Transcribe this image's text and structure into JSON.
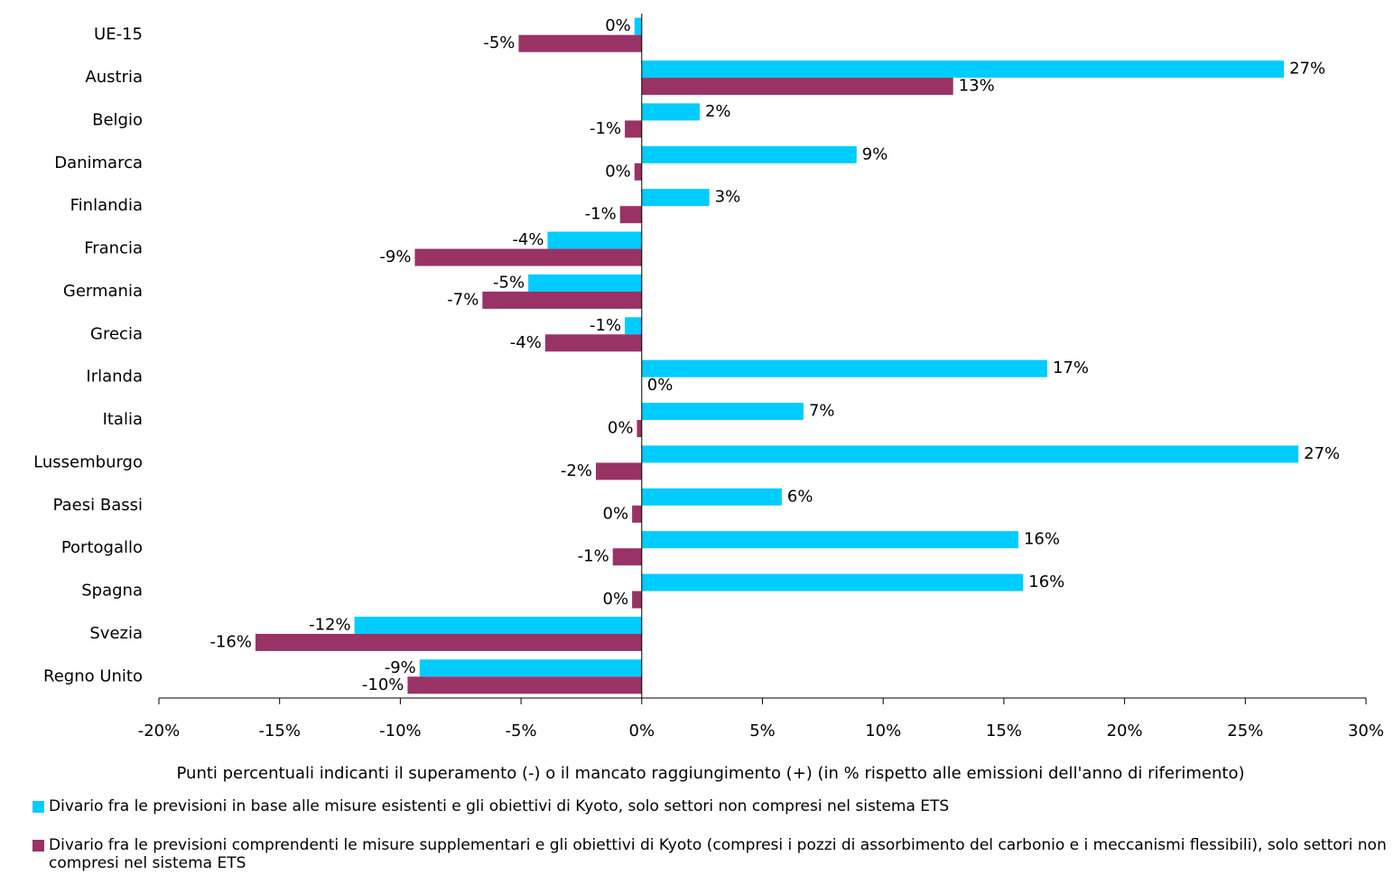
{
  "chart_data": {
    "type": "hbar",
    "xlabel": "Punti percentuali indicanti il superamento (-) o il mancato raggiungimento (+) (in % rispetto alle emissioni dell'anno di riferimento)",
    "categories": [
      "UE-15",
      "Austria",
      "Belgio",
      "Danimarca",
      "Finlandia",
      "Francia",
      "Germania",
      "Grecia",
      "Irlanda",
      "Italia",
      "Lussemburgo",
      "Paesi Bassi",
      "Portogallo",
      "Spagna",
      "Svezia",
      "Regno Unito"
    ],
    "series": [
      {
        "name": "Divario fra le previsioni  in base alle misure esistenti e gli obiettivi di Kyoto, solo settori non compresi nel sistema ETS",
        "color": "#00ccff",
        "values": [
          -0.3,
          26.6,
          2.4,
          8.9,
          2.8,
          -3.9,
          -4.7,
          -0.7,
          16.8,
          6.7,
          27.2,
          5.8,
          15.6,
          15.8,
          -11.9,
          -9.2
        ],
        "value_labels": [
          "0%",
          "27%",
          "2%",
          "9%",
          "3%",
          "-4%",
          "-5%",
          "-1%",
          "17%",
          "7%",
          "27%",
          "6%",
          "16%",
          "16%",
          "-12%",
          "-9%"
        ]
      },
      {
        "name": "Divario fra le previsioni  comprendenti le misure supplementari e gli obiettivi di Kyoto (compresi i pozzi di assorbimento del carbonio e i meccanismi flessibili), solo settori non compresi nel sistema ETS",
        "color": "#993366",
        "values": [
          -5.1,
          12.9,
          -0.7,
          -0.3,
          -0.9,
          -9.4,
          -6.6,
          -4.0,
          0,
          -0.2,
          -1.9,
          -0.4,
          -1.2,
          -0.4,
          -16.0,
          -9.7
        ],
        "value_labels": [
          "-5%",
          "13%",
          "-1%",
          "0%",
          "-1%",
          "-9%",
          "-7%",
          "-4%",
          "0%",
          "0%",
          "-2%",
          "0%",
          "-1%",
          "0%",
          "-16%",
          "-10%"
        ]
      }
    ],
    "xlim": [
      -20,
      30
    ],
    "xticks": [
      {
        "value": -20,
        "label": "-20%"
      },
      {
        "value": -15,
        "label": "-15%"
      },
      {
        "value": -10,
        "label": "-10%"
      },
      {
        "value": -5,
        "label": "-5%"
      },
      {
        "value": 0,
        "label": "0%"
      },
      {
        "value": 5,
        "label": "5%"
      },
      {
        "value": 10,
        "label": "10%"
      },
      {
        "value": 15,
        "label": "15%"
      },
      {
        "value": 20,
        "label": "20%"
      },
      {
        "value": 25,
        "label": "25%"
      },
      {
        "value": 30,
        "label": "30%"
      }
    ],
    "grid": false
  }
}
